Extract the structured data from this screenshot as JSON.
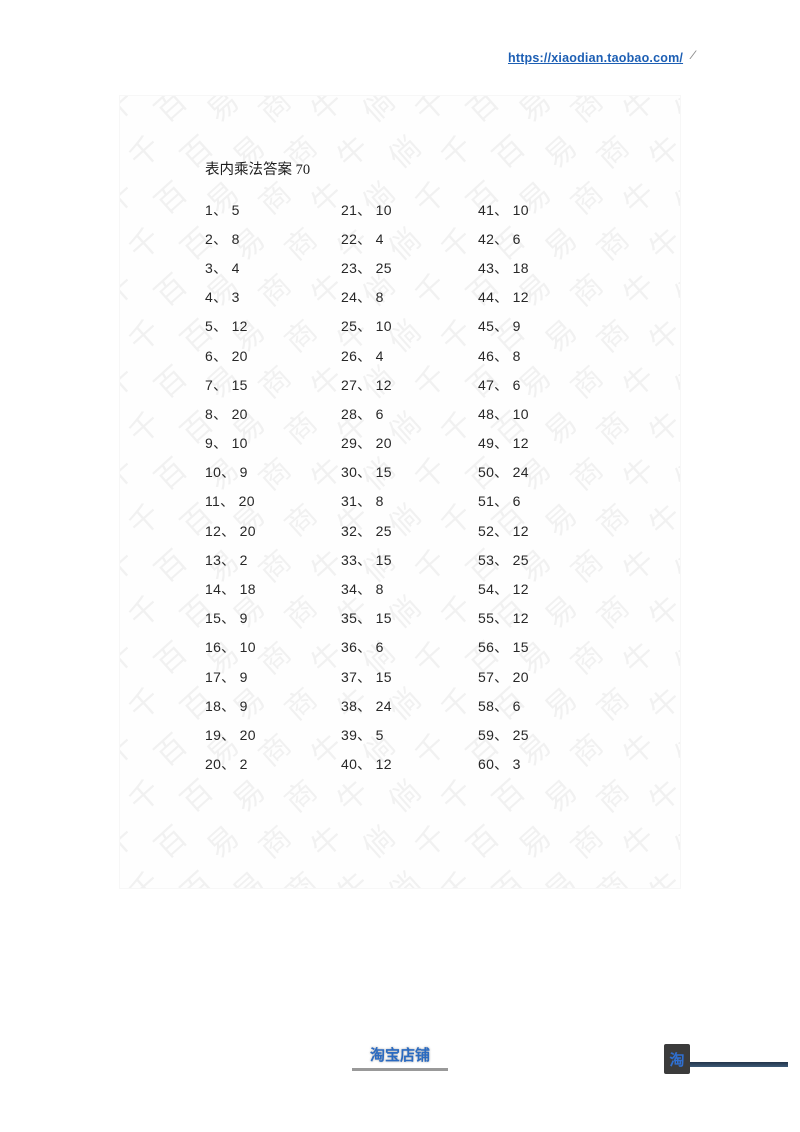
{
  "header": {
    "shop_link": "https://xiaodian.taobao.com/"
  },
  "sheet": {
    "title": "表内乘法答案 70",
    "separator": "、",
    "columns": [
      {
        "start": 1,
        "values": [
          5,
          8,
          4,
          3,
          12,
          20,
          15,
          20,
          10,
          9,
          20,
          20,
          2,
          18,
          9,
          10,
          9,
          9,
          20,
          2
        ]
      },
      {
        "start": 21,
        "values": [
          10,
          4,
          25,
          8,
          10,
          4,
          12,
          6,
          20,
          15,
          8,
          25,
          15,
          8,
          15,
          6,
          15,
          24,
          5,
          12
        ]
      },
      {
        "start": 41,
        "values": [
          10,
          6,
          18,
          12,
          9,
          8,
          6,
          10,
          12,
          24,
          6,
          12,
          25,
          12,
          12,
          15,
          20,
          6,
          25,
          3
        ]
      }
    ]
  },
  "watermark": {
    "characters": [
      "千",
      "百",
      "易",
      "商",
      "牛",
      "倘"
    ]
  },
  "footer": {
    "shop_label": "淘宝店铺",
    "shop_glyph": "淘"
  },
  "colors": {
    "link_blue": "#1d5fb4",
    "footer_blue": "#2a6ac1",
    "glyph_blue": "#2f6fd0"
  }
}
